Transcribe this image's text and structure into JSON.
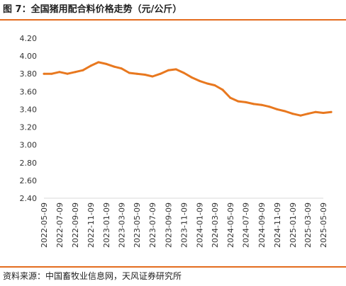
{
  "header": {
    "title": "图 7：全国猪用配合料价格走势（元/公斤）"
  },
  "footer": {
    "source": "资料来源：中国畜牧业信息网，天风证券研究所"
  },
  "colors": {
    "series": "#e8781f",
    "rule": "#e46c1e",
    "axis": "#d9d9d9"
  },
  "chart_data": {
    "type": "line",
    "title": "全国猪用配合料价格走势（元/公斤）",
    "xlabel": "",
    "ylabel": "",
    "ylim": [
      2.4,
      4.2
    ],
    "yticks": [
      "4.20",
      "4.00",
      "3.80",
      "3.60",
      "3.40",
      "3.20",
      "3.00",
      "2.80",
      "2.60",
      "2.40"
    ],
    "xticks": [
      "2022-05-09",
      "2022-07-09",
      "2022-09-09",
      "2022-11-09",
      "2023-01-09",
      "2023-03-09",
      "2023-05-09",
      "2023-07-09",
      "2023-09-09",
      "2023-11-09",
      "2024-01-09",
      "2024-03-09",
      "2024-05-09",
      "2024-07-09",
      "2024-09-09",
      "2024-11-09",
      "2025-01-09",
      "2025-03-09",
      "2025-05-09"
    ],
    "grid": false,
    "legend": "none",
    "series": [
      {
        "x": [
          "2022-05-09",
          "2022-06-09",
          "2022-07-09",
          "2022-08-09",
          "2022-09-09",
          "2022-10-09",
          "2022-11-09",
          "2022-12-09",
          "2023-01-09",
          "2023-02-09",
          "2023-03-09",
          "2023-04-09",
          "2023-05-09",
          "2023-06-09",
          "2023-07-09",
          "2023-08-09",
          "2023-09-09",
          "2023-10-09",
          "2023-11-09",
          "2023-12-09",
          "2024-01-09",
          "2024-02-09",
          "2024-03-09",
          "2024-04-09",
          "2024-05-09",
          "2024-06-09",
          "2024-07-09",
          "2024-08-09",
          "2024-09-09",
          "2024-10-09",
          "2024-11-09",
          "2024-12-09",
          "2025-01-09",
          "2025-02-09",
          "2025-03-09",
          "2025-04-09",
          "2025-05-09",
          "2025-06-09"
        ],
        "values": [
          3.8,
          3.8,
          3.82,
          3.8,
          3.82,
          3.84,
          3.89,
          3.93,
          3.91,
          3.88,
          3.86,
          3.81,
          3.8,
          3.79,
          3.77,
          3.8,
          3.84,
          3.85,
          3.81,
          3.76,
          3.72,
          3.69,
          3.67,
          3.62,
          3.53,
          3.49,
          3.48,
          3.46,
          3.45,
          3.43,
          3.4,
          3.38,
          3.35,
          3.33,
          3.35,
          3.37,
          3.36,
          3.37
        ]
      }
    ]
  }
}
